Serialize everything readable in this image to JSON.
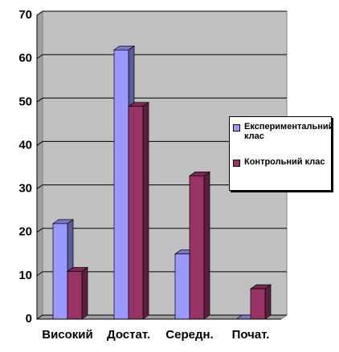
{
  "chart_data": {
    "type": "bar3d",
    "categories": [
      "Високий",
      "Достат.",
      "Середн.",
      "Почат."
    ],
    "series": [
      {
        "name": "Експериментальний клас",
        "color": "#9999ff",
        "values": [
          22,
          62,
          15,
          0
        ]
      },
      {
        "name": "Контрольний клас",
        "color": "#993366",
        "values": [
          11,
          49,
          33,
          7
        ]
      }
    ],
    "ylim": [
      0,
      70
    ],
    "yticks": [
      0,
      10,
      20,
      30,
      40,
      50,
      60,
      70
    ],
    "grid": true,
    "legend": "right"
  }
}
